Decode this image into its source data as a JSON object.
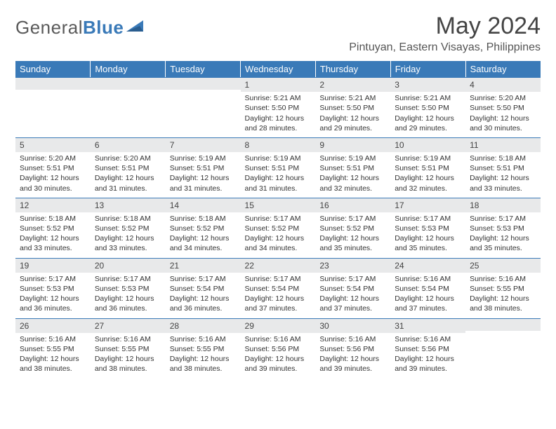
{
  "logo": {
    "text1": "General",
    "text2": "Blue"
  },
  "title": "May 2024",
  "location": "Pintuyan, Eastern Visayas, Philippines",
  "columns": [
    "Sunday",
    "Monday",
    "Tuesday",
    "Wednesday",
    "Thursday",
    "Friday",
    "Saturday"
  ],
  "weeks": [
    [
      null,
      null,
      null,
      {
        "n": "1",
        "sr": "5:21 AM",
        "ss": "5:50 PM",
        "dl": "12 hours and 28 minutes."
      },
      {
        "n": "2",
        "sr": "5:21 AM",
        "ss": "5:50 PM",
        "dl": "12 hours and 29 minutes."
      },
      {
        "n": "3",
        "sr": "5:21 AM",
        "ss": "5:50 PM",
        "dl": "12 hours and 29 minutes."
      },
      {
        "n": "4",
        "sr": "5:20 AM",
        "ss": "5:50 PM",
        "dl": "12 hours and 30 minutes."
      }
    ],
    [
      {
        "n": "5",
        "sr": "5:20 AM",
        "ss": "5:51 PM",
        "dl": "12 hours and 30 minutes."
      },
      {
        "n": "6",
        "sr": "5:20 AM",
        "ss": "5:51 PM",
        "dl": "12 hours and 31 minutes."
      },
      {
        "n": "7",
        "sr": "5:19 AM",
        "ss": "5:51 PM",
        "dl": "12 hours and 31 minutes."
      },
      {
        "n": "8",
        "sr": "5:19 AM",
        "ss": "5:51 PM",
        "dl": "12 hours and 31 minutes."
      },
      {
        "n": "9",
        "sr": "5:19 AM",
        "ss": "5:51 PM",
        "dl": "12 hours and 32 minutes."
      },
      {
        "n": "10",
        "sr": "5:19 AM",
        "ss": "5:51 PM",
        "dl": "12 hours and 32 minutes."
      },
      {
        "n": "11",
        "sr": "5:18 AM",
        "ss": "5:51 PM",
        "dl": "12 hours and 33 minutes."
      }
    ],
    [
      {
        "n": "12",
        "sr": "5:18 AM",
        "ss": "5:52 PM",
        "dl": "12 hours and 33 minutes."
      },
      {
        "n": "13",
        "sr": "5:18 AM",
        "ss": "5:52 PM",
        "dl": "12 hours and 33 minutes."
      },
      {
        "n": "14",
        "sr": "5:18 AM",
        "ss": "5:52 PM",
        "dl": "12 hours and 34 minutes."
      },
      {
        "n": "15",
        "sr": "5:17 AM",
        "ss": "5:52 PM",
        "dl": "12 hours and 34 minutes."
      },
      {
        "n": "16",
        "sr": "5:17 AM",
        "ss": "5:52 PM",
        "dl": "12 hours and 35 minutes."
      },
      {
        "n": "17",
        "sr": "5:17 AM",
        "ss": "5:53 PM",
        "dl": "12 hours and 35 minutes."
      },
      {
        "n": "18",
        "sr": "5:17 AM",
        "ss": "5:53 PM",
        "dl": "12 hours and 35 minutes."
      }
    ],
    [
      {
        "n": "19",
        "sr": "5:17 AM",
        "ss": "5:53 PM",
        "dl": "12 hours and 36 minutes."
      },
      {
        "n": "20",
        "sr": "5:17 AM",
        "ss": "5:53 PM",
        "dl": "12 hours and 36 minutes."
      },
      {
        "n": "21",
        "sr": "5:17 AM",
        "ss": "5:54 PM",
        "dl": "12 hours and 36 minutes."
      },
      {
        "n": "22",
        "sr": "5:17 AM",
        "ss": "5:54 PM",
        "dl": "12 hours and 37 minutes."
      },
      {
        "n": "23",
        "sr": "5:17 AM",
        "ss": "5:54 PM",
        "dl": "12 hours and 37 minutes."
      },
      {
        "n": "24",
        "sr": "5:16 AM",
        "ss": "5:54 PM",
        "dl": "12 hours and 37 minutes."
      },
      {
        "n": "25",
        "sr": "5:16 AM",
        "ss": "5:55 PM",
        "dl": "12 hours and 38 minutes."
      }
    ],
    [
      {
        "n": "26",
        "sr": "5:16 AM",
        "ss": "5:55 PM",
        "dl": "12 hours and 38 minutes."
      },
      {
        "n": "27",
        "sr": "5:16 AM",
        "ss": "5:55 PM",
        "dl": "12 hours and 38 minutes."
      },
      {
        "n": "28",
        "sr": "5:16 AM",
        "ss": "5:55 PM",
        "dl": "12 hours and 38 minutes."
      },
      {
        "n": "29",
        "sr": "5:16 AM",
        "ss": "5:56 PM",
        "dl": "12 hours and 39 minutes."
      },
      {
        "n": "30",
        "sr": "5:16 AM",
        "ss": "5:56 PM",
        "dl": "12 hours and 39 minutes."
      },
      {
        "n": "31",
        "sr": "5:16 AM",
        "ss": "5:56 PM",
        "dl": "12 hours and 39 minutes."
      },
      null
    ]
  ],
  "labels": {
    "sunrise": "Sunrise: ",
    "sunset": "Sunset: ",
    "daylight": "Daylight: "
  }
}
